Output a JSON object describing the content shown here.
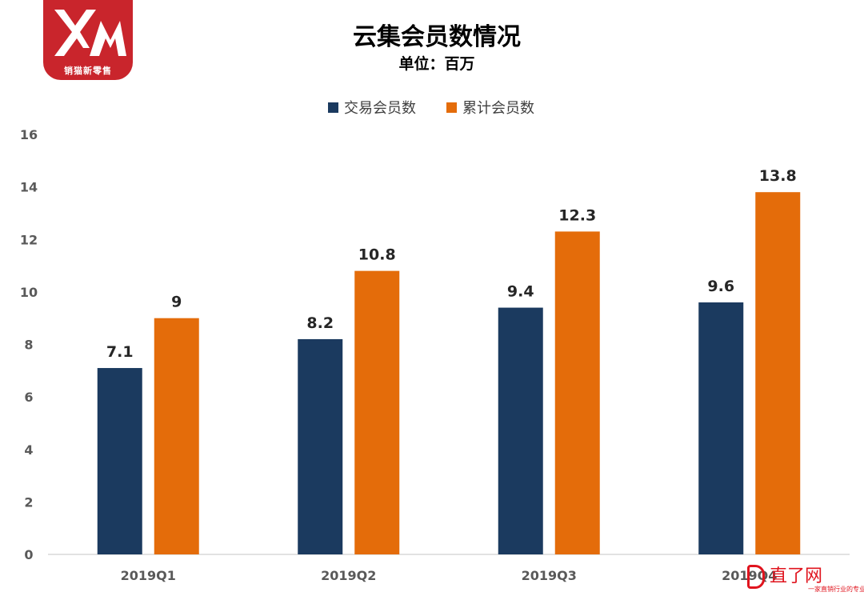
{
  "logo": {
    "text": "销猫新零售"
  },
  "watermark": {
    "name": "直了网",
    "slogan": "一家直销行业的专业媒体"
  },
  "chart_data": {
    "type": "bar",
    "title": "云集会员数情况",
    "subtitle": "单位：百万",
    "categories": [
      "2019Q1",
      "2019Q2",
      "2019Q3",
      "2019Q4"
    ],
    "series": [
      {
        "name": "交易会员数",
        "color": "#1b3a5f",
        "values": [
          7.1,
          8.2,
          9.4,
          9.6
        ],
        "labels": [
          "7.1",
          "8.2",
          "9.4",
          "9.6"
        ]
      },
      {
        "name": "累计会员数",
        "color": "#e46c0a",
        "values": [
          9,
          10.8,
          12.3,
          13.8
        ],
        "labels": [
          "9",
          "10.8",
          "12.3",
          "13.8"
        ]
      }
    ],
    "ylim": [
      0,
      16
    ],
    "yticks": [
      "0",
      "2",
      "4",
      "6",
      "8",
      "10",
      "12",
      "14",
      "16"
    ],
    "xlabel": "",
    "ylabel": "",
    "grid": false,
    "legend": "top-center"
  }
}
